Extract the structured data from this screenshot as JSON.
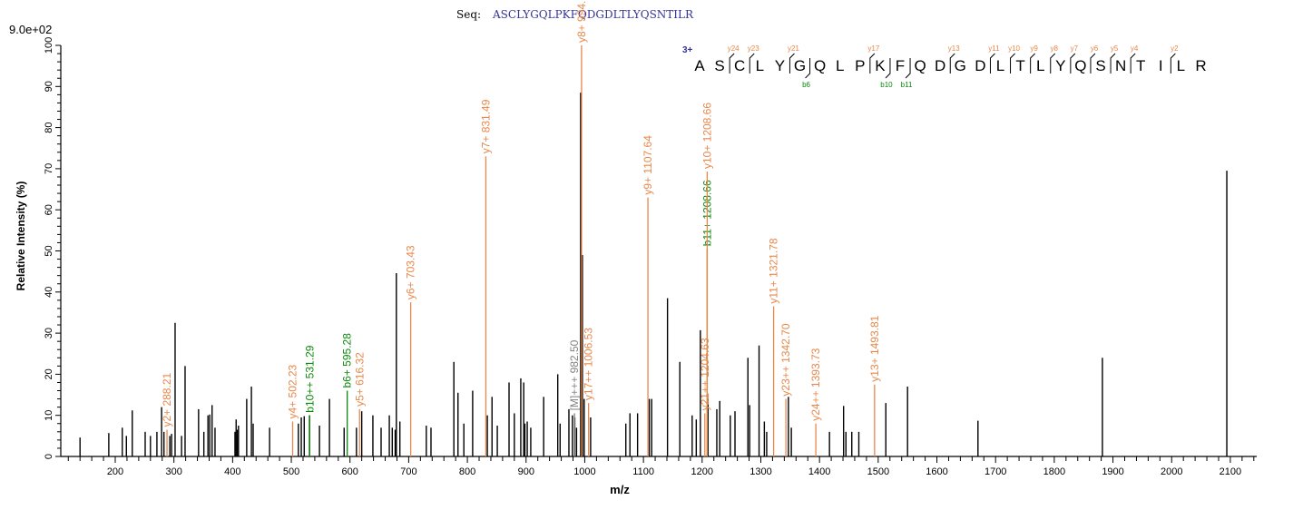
{
  "chart_data": {
    "type": "bar",
    "title_prefix": "Seq:",
    "sequence": "ASCLYGQLPKFQDGDLTLYQSNTILR",
    "charge": "3+",
    "max_intensity_label": "9.0e+02",
    "xlabel": "m/z",
    "ylabel": "Relative  Intensity (%)",
    "xlim": [
      112,
      2144
    ],
    "ylim": [
      0,
      100
    ],
    "x_ticks": [
      200,
      300,
      400,
      500,
      600,
      700,
      800,
      900,
      1000,
      1100,
      1200,
      1300,
      1400,
      1500,
      1600,
      1700,
      1800,
      1900,
      2000,
      2100
    ],
    "y_ticks": [
      0,
      10,
      20,
      30,
      40,
      50,
      60,
      70,
      80,
      90,
      100
    ],
    "colors": {
      "y_ion": "#e8874a",
      "b_ion": "#0a8a0a",
      "precursor": "#808080",
      "peak": "#000000",
      "sequence": "#333399"
    },
    "peaks": [
      [
        140,
        4.6
      ],
      [
        189,
        5.7
      ],
      [
        212,
        7
      ],
      [
        219,
        5
      ],
      [
        229,
        11.2
      ],
      [
        251,
        6
      ],
      [
        260,
        5
      ],
      [
        271,
        6
      ],
      [
        279,
        12
      ],
      [
        283,
        6
      ],
      [
        293,
        5
      ],
      [
        296,
        5.5
      ],
      [
        302,
        32.5
      ],
      [
        313,
        5
      ],
      [
        319,
        22
      ],
      [
        342,
        11.5
      ],
      [
        351,
        6
      ],
      [
        358,
        10
      ],
      [
        361,
        10.2
      ],
      [
        365,
        12.5
      ],
      [
        370,
        7
      ],
      [
        404,
        6
      ],
      [
        406,
        9
      ],
      [
        408,
        6.5
      ],
      [
        410,
        7.5
      ],
      [
        424,
        14
      ],
      [
        432,
        17
      ],
      [
        435,
        8
      ],
      [
        463,
        7
      ],
      [
        512,
        8
      ],
      [
        517,
        9.5
      ],
      [
        522,
        9.8
      ],
      [
        531,
        10
      ],
      [
        548,
        7.5
      ],
      [
        565,
        14
      ],
      [
        590,
        7
      ],
      [
        611,
        7
      ],
      [
        620,
        11
      ],
      [
        639,
        10
      ],
      [
        653,
        7
      ],
      [
        667,
        10
      ],
      [
        672,
        7
      ],
      [
        677,
        6.5
      ],
      [
        679,
        44.6
      ],
      [
        685,
        8.5
      ],
      [
        730,
        7.5
      ],
      [
        738,
        7
      ],
      [
        777,
        23
      ],
      [
        784,
        15.5
      ],
      [
        794,
        8
      ],
      [
        809,
        16
      ],
      [
        834,
        10
      ],
      [
        842,
        14.5
      ],
      [
        851,
        7.5
      ],
      [
        871,
        18
      ],
      [
        880,
        10.5
      ],
      [
        891,
        19
      ],
      [
        896,
        18
      ],
      [
        898,
        8
      ],
      [
        902,
        8.5
      ],
      [
        908,
        7
      ],
      [
        930,
        14.5
      ],
      [
        954,
        20
      ],
      [
        958,
        8
      ],
      [
        973,
        11.5
      ],
      [
        979,
        10
      ],
      [
        983,
        9.5
      ],
      [
        986,
        7
      ],
      [
        993,
        88.5
      ],
      [
        996,
        49
      ],
      [
        999,
        14
      ],
      [
        1010,
        9.5
      ],
      [
        1070,
        8
      ],
      [
        1077,
        10.5
      ],
      [
        1090,
        10.5
      ],
      [
        1110,
        14
      ],
      [
        1114,
        14
      ],
      [
        1141,
        38.5
      ],
      [
        1162,
        23
      ],
      [
        1183,
        10
      ],
      [
        1190,
        9
      ],
      [
        1197,
        30.7
      ],
      [
        1210,
        14
      ],
      [
        1225,
        11.5
      ],
      [
        1230,
        13.5
      ],
      [
        1248,
        10
      ],
      [
        1256,
        11
      ],
      [
        1278,
        24
      ],
      [
        1281,
        12.5
      ],
      [
        1297,
        27
      ],
      [
        1306,
        8.5
      ],
      [
        1310,
        6
      ],
      [
        1347,
        14.5
      ],
      [
        1352,
        7
      ],
      [
        1417,
        6
      ],
      [
        1441,
        12.3
      ],
      [
        1445,
        6
      ],
      [
        1455,
        6
      ],
      [
        1467,
        6
      ],
      [
        1513,
        13
      ],
      [
        1550,
        17
      ],
      [
        1670,
        8.7
      ],
      [
        1882,
        24
      ],
      [
        2094,
        69.5
      ]
    ],
    "annotations": [
      {
        "mz": 288.21,
        "intensity": 6.5,
        "label": "y2+ 288.21",
        "kind": "y"
      },
      {
        "mz": 502.23,
        "intensity": 8.5,
        "label": "y4+ 502.23",
        "kind": "y"
      },
      {
        "mz": 531.29,
        "intensity": 10,
        "label": "b10++ 531.29",
        "kind": "b"
      },
      {
        "mz": 595.28,
        "intensity": 16,
        "label": "b6+ 595.28",
        "kind": "b"
      },
      {
        "mz": 616.32,
        "intensity": 11.5,
        "label": "y5+ 616.32",
        "kind": "y"
      },
      {
        "mz": 703.43,
        "intensity": 37.5,
        "label": "y6+ 703.43",
        "kind": "y"
      },
      {
        "mz": 831.49,
        "intensity": 73,
        "label": "y7+ 831.49",
        "kind": "y"
      },
      {
        "mz": 982.5,
        "intensity": 10.5,
        "label": "[M]+++ 982.50",
        "kind": "p"
      },
      {
        "mz": 994.54,
        "intensity": 100,
        "label": "y8+ 994.54",
        "kind": "y"
      },
      {
        "mz": 1006.53,
        "intensity": 13,
        "label": "y17++ 1006.53",
        "kind": "y"
      },
      {
        "mz": 1107.64,
        "intensity": 63,
        "label": "y9+ 1107.64",
        "kind": "y"
      },
      {
        "mz": 1204.63,
        "intensity": 10.5,
        "label": "y21++ 1204.63",
        "kind": "y"
      },
      {
        "mz": 1208.66,
        "intensity": 50.5,
        "label": "b11+ 1208.66",
        "kind": "b"
      },
      {
        "mz": 1208.66,
        "intensity": 50.5,
        "label": "y10+ 1208.66",
        "kind": "y"
      },
      {
        "mz": 1321.78,
        "intensity": 36.5,
        "label": "y11+ 1321.78",
        "kind": "y"
      },
      {
        "mz": 1342.7,
        "intensity": 14,
        "label": "y23++ 1342.70",
        "kind": "y"
      },
      {
        "mz": 1393.73,
        "intensity": 8,
        "label": "y24++ 1393.73",
        "kind": "y"
      },
      {
        "mz": 1493.81,
        "intensity": 17.5,
        "label": "y13+ 1493.81",
        "kind": "y"
      }
    ],
    "fragment_map": {
      "y_ions": [
        24,
        23,
        21,
        17,
        13,
        11,
        10,
        9,
        8,
        7,
        6,
        5,
        4,
        2
      ],
      "b_ions": [
        6,
        10,
        11
      ]
    }
  }
}
